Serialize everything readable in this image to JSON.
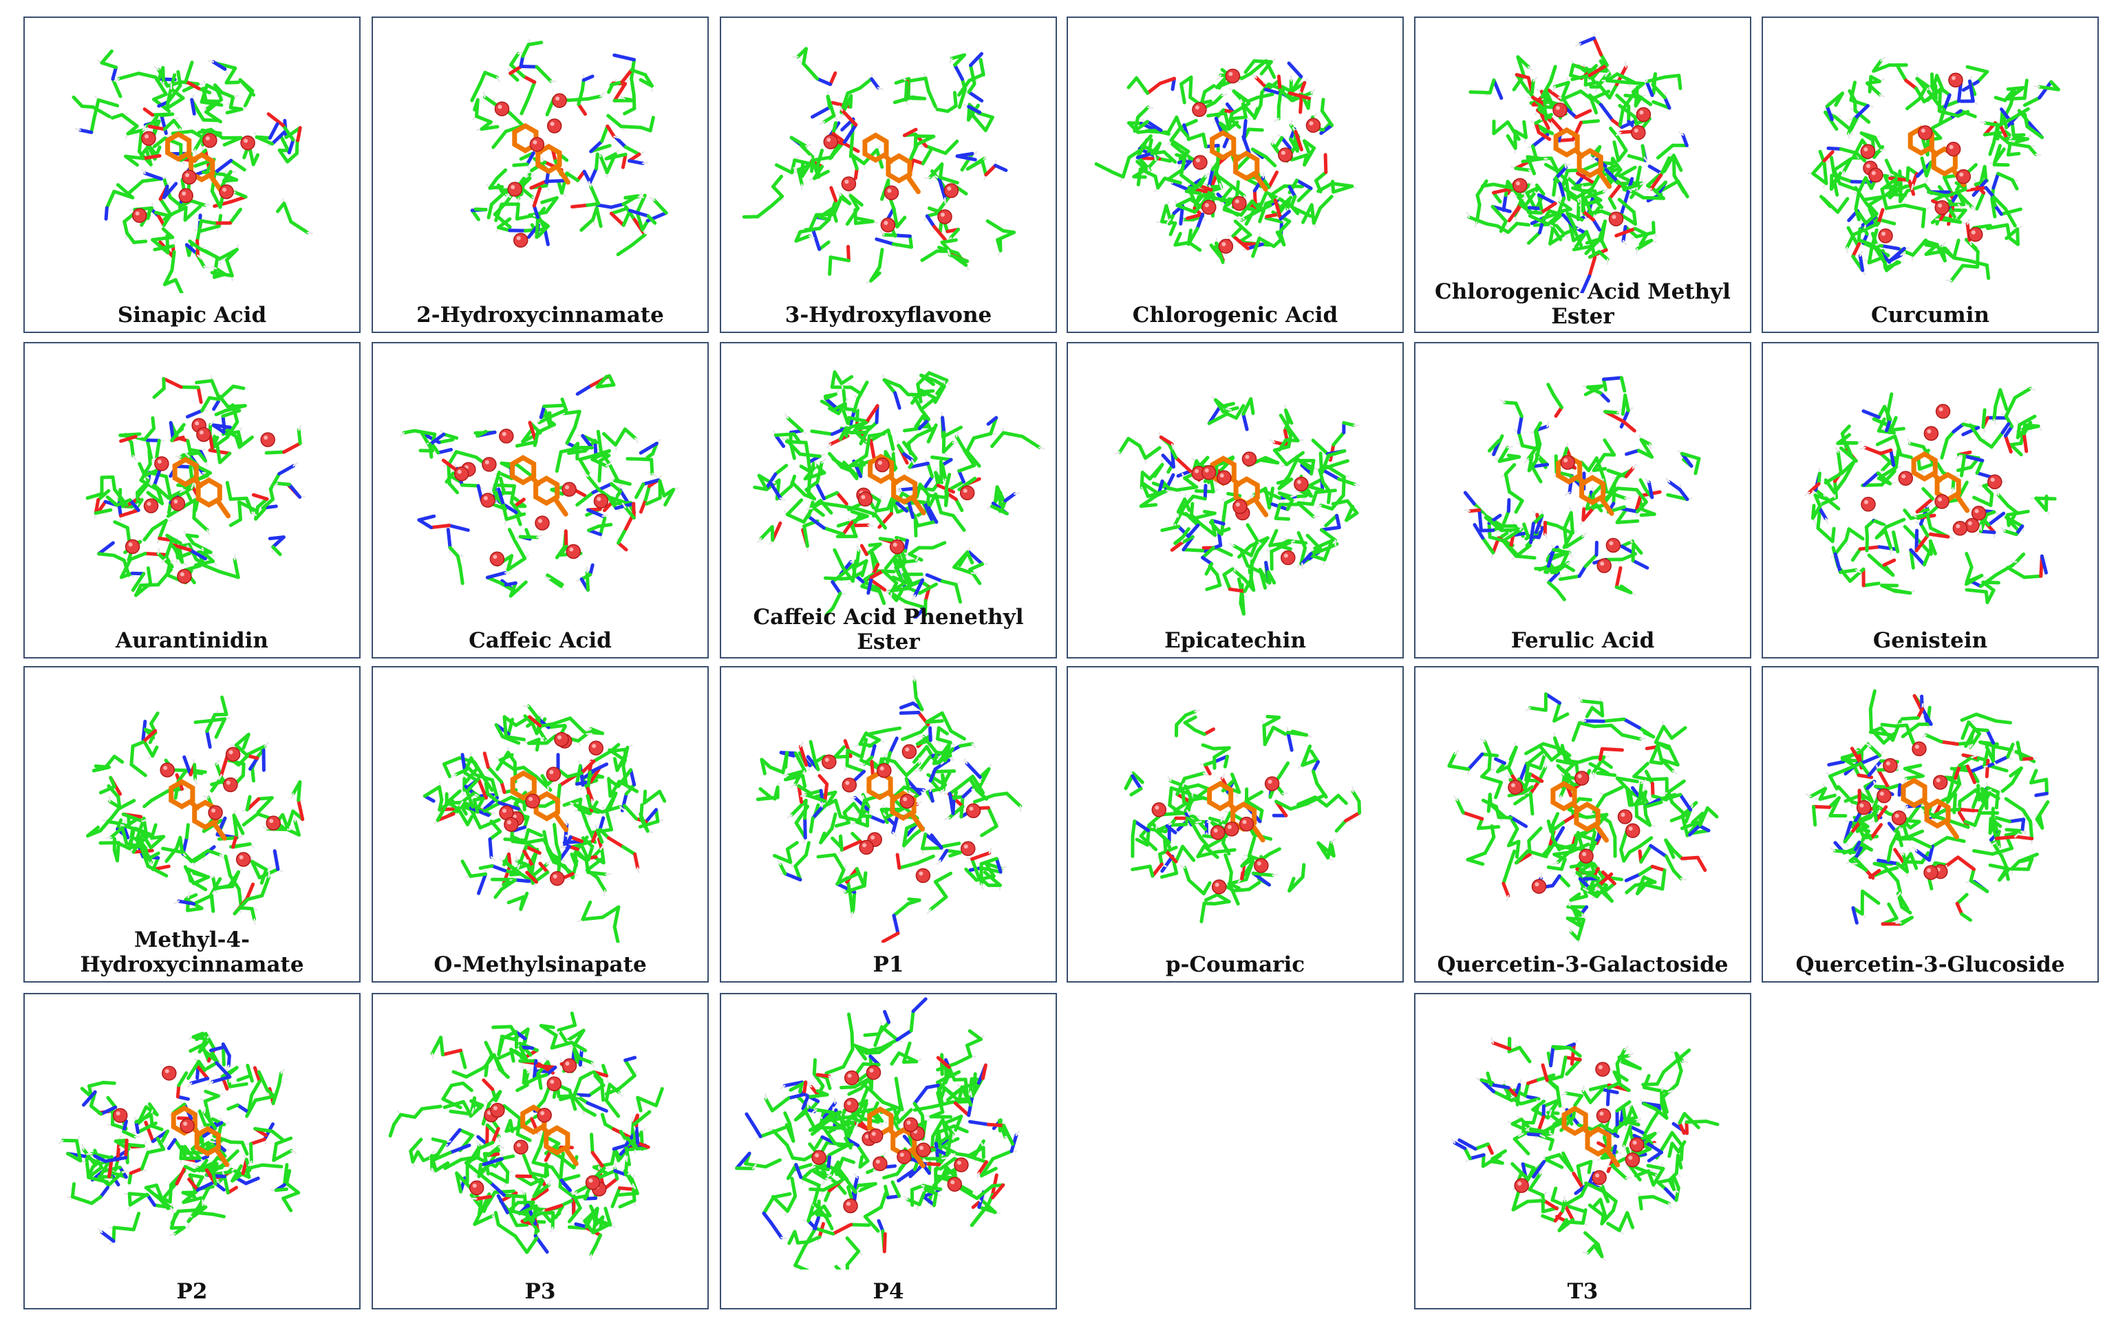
{
  "colors": {
    "carbon_stick": "#22dd22",
    "nitrogen": "#2233ee",
    "oxygen": "#ee2222",
    "hydrogen": "#e8e8e8",
    "sulfur": "#e6b800",
    "ligand": "#ee7700",
    "water": "#e84040",
    "frame": "#3a4f6e"
  },
  "panels": [
    {
      "label": "Sinapic Acid",
      "water": 7,
      "density": 55
    },
    {
      "label": "2-Hydroxycinnamate",
      "water": 6,
      "density": 38
    },
    {
      "label": "3-Hydroxyflavone",
      "water": 6,
      "density": 45
    },
    {
      "label": "Chlorogenic Acid",
      "water": 8,
      "density": 75
    },
    {
      "label": "Chlorogenic Acid Methyl Ester",
      "water": 5,
      "density": 80
    },
    {
      "label": "Curcumin",
      "water": 10,
      "density": 75
    },
    {
      "label": "Aurantinidin",
      "water": 8,
      "density": 50
    },
    {
      "label": "Caffeic Acid",
      "water": 10,
      "density": 45
    },
    {
      "label": "Caffeic Acid Phenethyl Ester",
      "water": 5,
      "density": 80
    },
    {
      "label": "Epicatechin",
      "water": 8,
      "density": 55
    },
    {
      "label": "Ferulic Acid",
      "water": 3,
      "density": 50
    },
    {
      "label": "Genistein",
      "water": 9,
      "density": 48
    },
    {
      "label": "Methyl-4-Hydroxycinnamate",
      "water": 6,
      "density": 48
    },
    {
      "label": "O-Methylsinapate",
      "water": 9,
      "density": 70
    },
    {
      "label": "P1",
      "water": 10,
      "density": 60
    },
    {
      "label": "p-Coumaric",
      "water": 7,
      "density": 45
    },
    {
      "label": "Quercetin-3-Galactoside",
      "water": 6,
      "density": 70
    },
    {
      "label": "Quercetin-3-Glucoside",
      "water": 8,
      "density": 70
    },
    {
      "label": "P2",
      "water": 3,
      "density": 65
    },
    {
      "label": "P3",
      "water": 9,
      "density": 85
    },
    {
      "label": "P4",
      "water": 14,
      "density": 90
    },
    {
      "label": "T3",
      "water": 6,
      "density": 65
    }
  ]
}
